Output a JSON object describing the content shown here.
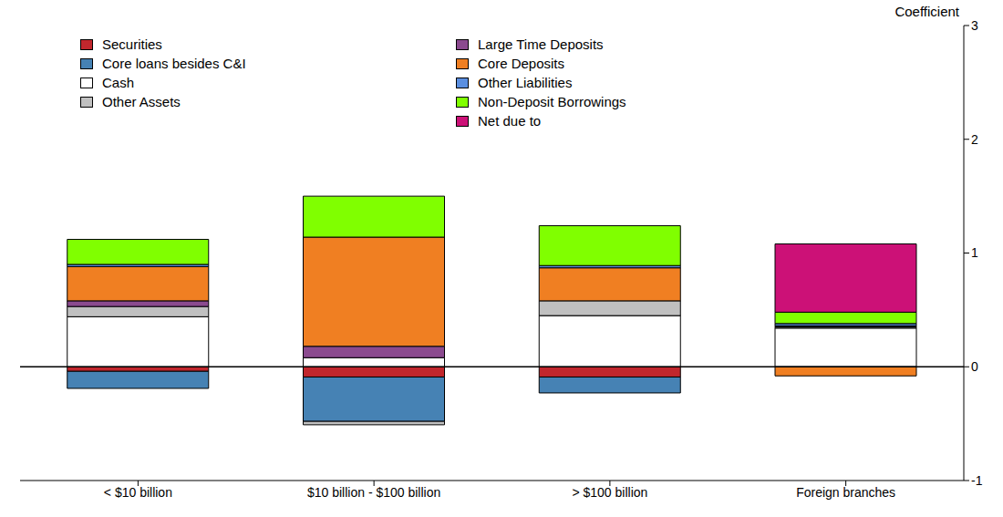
{
  "chart_data": {
    "type": "bar",
    "stacked": true,
    "y_label": "Coefficient",
    "categories": [
      "< $10 billion",
      "$10 billion - $100 billion",
      "> $100 billion",
      "Foreign branches"
    ],
    "ylim": [
      -1,
      3
    ],
    "yticks": [
      -1,
      0,
      1,
      2,
      3
    ],
    "legend": "upper left",
    "series": [
      {
        "name": "Securities",
        "color": "#c1272d",
        "values": [
          -0.04,
          -0.09,
          -0.09,
          0
        ]
      },
      {
        "name": "Core loans besides C&I",
        "color": "#4682b4",
        "values": [
          -0.15,
          -0.39,
          -0.14,
          0
        ]
      },
      {
        "name": "Cash",
        "color": "#ffffff",
        "values": [
          0.44,
          0.08,
          0.45,
          0.34
        ]
      },
      {
        "name": "Other Assets",
        "color": "#c0c0c0",
        "values": [
          0.09,
          -0.03,
          0.13,
          0.01
        ]
      },
      {
        "name": "Large Time Deposits",
        "color": "#8b4a8f",
        "values": [
          0.05,
          0.1,
          0,
          0.01
        ]
      },
      {
        "name": "Core Deposits",
        "color": "#f07f22",
        "values": [
          0.3,
          0.96,
          0.29,
          -0.08
        ]
      },
      {
        "name": "Other Liabilities",
        "color": "#5b8fe0",
        "values": [
          0.02,
          0,
          0.02,
          0.02
        ]
      },
      {
        "name": "Non-Deposit Borrowings",
        "color": "#80ff00",
        "values": [
          0.22,
          0.36,
          0.35,
          0.1
        ]
      },
      {
        "name": "Net due to",
        "color": "#cc1177",
        "values": [
          0,
          0,
          0,
          0.6
        ]
      }
    ]
  }
}
